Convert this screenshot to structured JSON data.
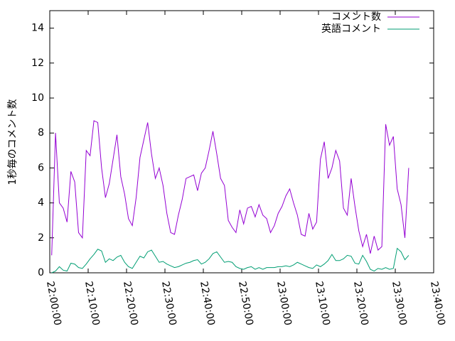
{
  "chart_data": {
    "type": "line",
    "ylabel": "1秒毎のコメント数",
    "x": [
      "22:00:30",
      "22:01:30",
      "22:02:30",
      "22:03:30",
      "22:04:30",
      "22:05:30",
      "22:06:30",
      "22:07:30",
      "22:08:30",
      "22:09:30",
      "22:10:30",
      "22:11:30",
      "22:12:30",
      "22:13:30",
      "22:14:30",
      "22:15:30",
      "22:16:30",
      "22:17:30",
      "22:18:30",
      "22:19:30",
      "22:20:30",
      "22:21:30",
      "22:22:30",
      "22:23:30",
      "22:24:30",
      "22:25:30",
      "22:26:30",
      "22:27:30",
      "22:28:30",
      "22:29:30",
      "22:30:30",
      "22:31:30",
      "22:32:30",
      "22:33:30",
      "22:34:30",
      "22:35:30",
      "22:36:30",
      "22:37:30",
      "22:38:30",
      "22:39:30",
      "22:40:30",
      "22:41:30",
      "22:42:30",
      "22:43:30",
      "22:44:30",
      "22:45:30",
      "22:46:30",
      "22:47:30",
      "22:48:30",
      "22:49:30",
      "22:50:30",
      "22:51:30",
      "22:52:30",
      "22:53:30",
      "22:54:30",
      "22:55:30",
      "22:56:30",
      "22:57:30",
      "22:58:30",
      "22:59:30",
      "23:00:30",
      "23:01:30",
      "23:02:30",
      "23:03:30",
      "23:04:30",
      "23:05:30",
      "23:06:30",
      "23:07:30",
      "23:08:30",
      "23:09:30",
      "23:10:30",
      "23:11:30",
      "23:12:30",
      "23:13:30",
      "23:14:30",
      "23:15:30",
      "23:16:30",
      "23:17:30",
      "23:18:30",
      "23:19:30",
      "23:20:30",
      "23:21:30",
      "23:22:30",
      "23:23:30",
      "23:24:30",
      "23:25:30",
      "23:26:30",
      "23:27:30",
      "23:28:30",
      "23:29:30",
      "23:30:30",
      "23:31:30",
      "23:32:30",
      "23:33:30"
    ],
    "series": [
      {
        "name": "コメント数",
        "color": "#9400d3",
        "values": [
          1.0,
          8.0,
          4.0,
          3.7,
          2.9,
          5.8,
          5.2,
          2.3,
          2.0,
          7.0,
          6.7,
          8.7,
          8.6,
          6.0,
          4.3,
          5.1,
          6.5,
          7.9,
          5.5,
          4.5,
          3.1,
          2.7,
          4.3,
          6.6,
          7.6,
          8.6,
          6.8,
          5.4,
          6.0,
          5.0,
          3.4,
          2.3,
          2.2,
          3.3,
          4.2,
          5.4,
          5.5,
          5.6,
          4.7,
          5.7,
          6.0,
          7.0,
          8.1,
          6.8,
          5.4,
          5.0,
          3.0,
          2.6,
          2.3,
          3.6,
          2.8,
          3.7,
          3.8,
          3.2,
          3.9,
          3.3,
          3.1,
          2.3,
          2.7,
          3.4,
          3.8,
          4.4,
          4.8,
          4.0,
          3.3,
          2.2,
          2.1,
          3.4,
          2.5,
          2.9,
          6.5,
          7.5,
          5.4,
          6.0,
          7.0,
          6.4,
          3.7,
          3.3,
          5.4,
          3.8,
          2.4,
          1.5,
          2.2,
          1.1,
          2.1,
          1.3,
          1.5,
          8.5,
          7.3,
          7.8,
          4.8,
          3.9,
          2.0,
          6.0
        ]
      },
      {
        "name": "英語コメント",
        "color": "#009e73",
        "values": [
          0.0,
          0.1,
          0.35,
          0.15,
          0.1,
          0.55,
          0.5,
          0.3,
          0.25,
          0.5,
          0.8,
          1.05,
          1.35,
          1.25,
          0.6,
          0.8,
          0.7,
          0.9,
          1.0,
          0.6,
          0.35,
          0.25,
          0.6,
          0.95,
          0.85,
          1.2,
          1.3,
          0.95,
          0.6,
          0.65,
          0.5,
          0.4,
          0.3,
          0.35,
          0.45,
          0.55,
          0.6,
          0.7,
          0.75,
          0.5,
          0.6,
          0.8,
          1.1,
          1.2,
          0.9,
          0.6,
          0.65,
          0.6,
          0.35,
          0.25,
          0.2,
          0.3,
          0.35,
          0.2,
          0.3,
          0.2,
          0.3,
          0.3,
          0.3,
          0.35,
          0.35,
          0.4,
          0.35,
          0.45,
          0.6,
          0.5,
          0.4,
          0.3,
          0.25,
          0.45,
          0.35,
          0.5,
          0.7,
          1.05,
          0.7,
          0.7,
          0.8,
          1.0,
          0.95,
          0.55,
          0.5,
          1.0,
          0.65,
          0.2,
          0.1,
          0.25,
          0.2,
          0.3,
          0.2,
          0.25,
          1.4,
          1.2,
          0.75,
          1.0
        ]
      }
    ],
    "xlim": [
      "22:00:00",
      "23:40:00"
    ],
    "xticks": [
      "22:00:00",
      "22:10:00",
      "22:20:00",
      "22:30:00",
      "22:40:00",
      "22:50:00",
      "23:00:00",
      "23:10:00",
      "23:20:00",
      "23:30:00",
      "23:40:00"
    ],
    "ylim": [
      0,
      15
    ],
    "yticks": [
      0,
      2,
      4,
      6,
      8,
      10,
      12,
      14
    ],
    "legend": "top-right"
  }
}
